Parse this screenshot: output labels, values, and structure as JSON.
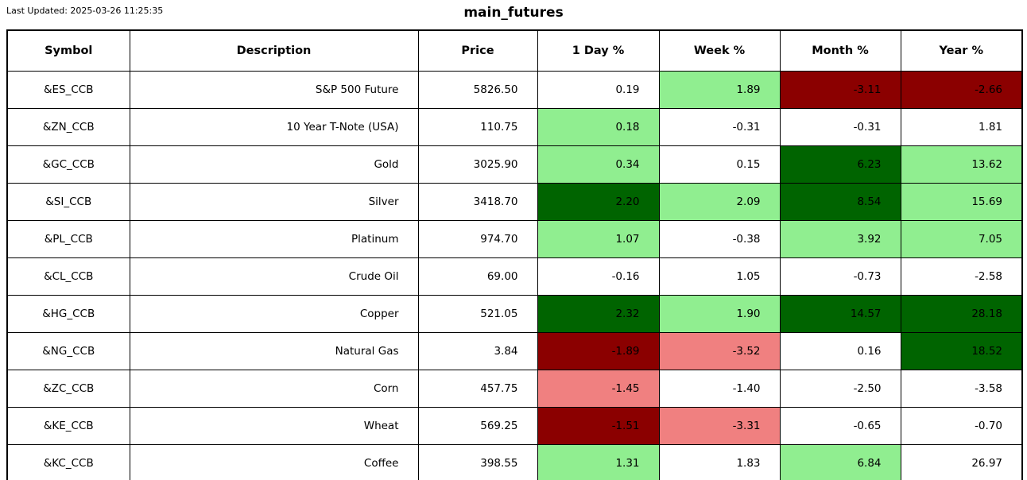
{
  "header": {
    "last_updated": "Last Updated: 2025-03-26 11:25:35",
    "title": "main_futures"
  },
  "colors": {
    "strong_up": "#006400",
    "up": "#90EE90",
    "neutral": "#FFFFFF",
    "down": "#F08080",
    "strong_down": "#8B0000",
    "border": "#000000",
    "text": "#000000"
  },
  "chart_data": {
    "type": "table",
    "title": "main_futures",
    "columns": [
      "Symbol",
      "Description",
      "Price",
      "1 Day %",
      "Week %",
      "Month %",
      "Year %"
    ],
    "rows": [
      {
        "symbol": "&ES_CCB",
        "description": "S&P 500 Future",
        "price": "5826.50",
        "changes": [
          {
            "value": "0.19",
            "tone": "neutral"
          },
          {
            "value": "1.89",
            "tone": "up"
          },
          {
            "value": "-3.11",
            "tone": "strong_down"
          },
          {
            "value": "-2.66",
            "tone": "strong_down"
          }
        ]
      },
      {
        "symbol": "&ZN_CCB",
        "description": "10 Year T-Note (USA)",
        "price": "110.75",
        "changes": [
          {
            "value": "0.18",
            "tone": "up"
          },
          {
            "value": "-0.31",
            "tone": "neutral"
          },
          {
            "value": "-0.31",
            "tone": "neutral"
          },
          {
            "value": "1.81",
            "tone": "neutral"
          }
        ]
      },
      {
        "symbol": "&GC_CCB",
        "description": "Gold",
        "price": "3025.90",
        "changes": [
          {
            "value": "0.34",
            "tone": "up"
          },
          {
            "value": "0.15",
            "tone": "neutral"
          },
          {
            "value": "6.23",
            "tone": "strong_up"
          },
          {
            "value": "13.62",
            "tone": "up"
          }
        ]
      },
      {
        "symbol": "&SI_CCB",
        "description": "Silver",
        "price": "3418.70",
        "changes": [
          {
            "value": "2.20",
            "tone": "strong_up"
          },
          {
            "value": "2.09",
            "tone": "up"
          },
          {
            "value": "8.54",
            "tone": "strong_up"
          },
          {
            "value": "15.69",
            "tone": "up"
          }
        ]
      },
      {
        "symbol": "&PL_CCB",
        "description": "Platinum",
        "price": "974.70",
        "changes": [
          {
            "value": "1.07",
            "tone": "up"
          },
          {
            "value": "-0.38",
            "tone": "neutral"
          },
          {
            "value": "3.92",
            "tone": "up"
          },
          {
            "value": "7.05",
            "tone": "up"
          }
        ]
      },
      {
        "symbol": "&CL_CCB",
        "description": "Crude Oil",
        "price": "69.00",
        "changes": [
          {
            "value": "-0.16",
            "tone": "neutral"
          },
          {
            "value": "1.05",
            "tone": "neutral"
          },
          {
            "value": "-0.73",
            "tone": "neutral"
          },
          {
            "value": "-2.58",
            "tone": "neutral"
          }
        ]
      },
      {
        "symbol": "&HG_CCB",
        "description": "Copper",
        "price": "521.05",
        "changes": [
          {
            "value": "2.32",
            "tone": "strong_up"
          },
          {
            "value": "1.90",
            "tone": "up"
          },
          {
            "value": "14.57",
            "tone": "strong_up"
          },
          {
            "value": "28.18",
            "tone": "strong_up"
          }
        ]
      },
      {
        "symbol": "&NG_CCB",
        "description": "Natural Gas",
        "price": "3.84",
        "changes": [
          {
            "value": "-1.89",
            "tone": "strong_down"
          },
          {
            "value": "-3.52",
            "tone": "down"
          },
          {
            "value": "0.16",
            "tone": "neutral"
          },
          {
            "value": "18.52",
            "tone": "strong_up"
          }
        ]
      },
      {
        "symbol": "&ZC_CCB",
        "description": "Corn",
        "price": "457.75",
        "changes": [
          {
            "value": "-1.45",
            "tone": "down"
          },
          {
            "value": "-1.40",
            "tone": "neutral"
          },
          {
            "value": "-2.50",
            "tone": "neutral"
          },
          {
            "value": "-3.58",
            "tone": "neutral"
          }
        ]
      },
      {
        "symbol": "&KE_CCB",
        "description": "Wheat",
        "price": "569.25",
        "changes": [
          {
            "value": "-1.51",
            "tone": "strong_down"
          },
          {
            "value": "-3.31",
            "tone": "down"
          },
          {
            "value": "-0.65",
            "tone": "neutral"
          },
          {
            "value": "-0.70",
            "tone": "neutral"
          }
        ]
      },
      {
        "symbol": "&KC_CCB",
        "description": "Coffee",
        "price": "398.55",
        "changes": [
          {
            "value": "1.31",
            "tone": "up"
          },
          {
            "value": "1.83",
            "tone": "neutral"
          },
          {
            "value": "6.84",
            "tone": "up"
          },
          {
            "value": "26.97",
            "tone": "neutral"
          }
        ]
      }
    ]
  }
}
